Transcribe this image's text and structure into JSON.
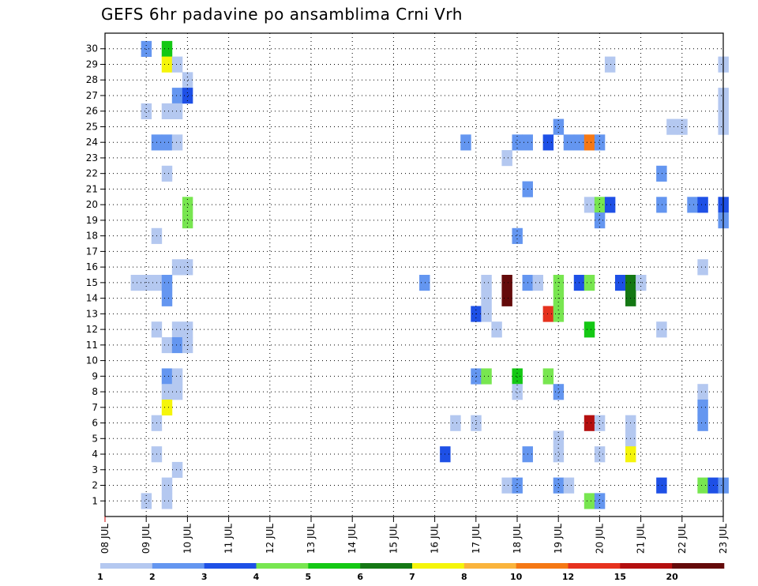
{
  "chart_data": {
    "type": "heatmap",
    "title": "GEFS 6hr padavine po ansamblima Crni Vrh",
    "x_ticks": [
      "08 JUL",
      "09 JUL",
      "10 JUL",
      "11 JUL",
      "12 JUL",
      "13 JUL",
      "14 JUL",
      "15 JUL",
      "16 JUL",
      "17 JUL",
      "18 JUL",
      "19 JUL",
      "20 JUL",
      "21 JUL",
      "22 JUL",
      "23 JUL"
    ],
    "y_ticks": [
      1,
      2,
      3,
      4,
      5,
      6,
      7,
      8,
      9,
      10,
      11,
      12,
      13,
      14,
      15,
      16,
      17,
      18,
      19,
      20,
      21,
      22,
      23,
      24,
      25,
      26,
      27,
      28,
      29,
      30
    ],
    "grid": true,
    "legend_position": "bottom",
    "legend": {
      "colors": [
        "#b4c8f0",
        "#6496f0",
        "#1e50e6",
        "#78e650",
        "#14c814",
        "#147814",
        "#f5f50a",
        "#fab43c",
        "#f57814",
        "#e6321e",
        "#b40f0f",
        "#640a0a"
      ],
      "labels": [
        "1",
        "2",
        "3",
        "4",
        "5",
        "6",
        "7",
        "8",
        "10",
        "12",
        "15",
        "20"
      ]
    },
    "cells": [
      {
        "x": "09 JUL 00",
        "member": 30,
        "mm": 2
      },
      {
        "x": "09 JUL 12",
        "member": 30,
        "mm": 5
      },
      {
        "x": "09 JUL 12",
        "member": 29,
        "mm": 7
      },
      {
        "x": "09 JUL 18",
        "member": 29,
        "mm": 1
      },
      {
        "x": "20 JUL 06",
        "member": 29,
        "mm": 1
      },
      {
        "x": "23 JUL 00",
        "member": 29,
        "mm": 1
      },
      {
        "x": "10 JUL 00",
        "member": 28,
        "mm": 1
      },
      {
        "x": "09 JUL 18",
        "member": 27,
        "mm": 2
      },
      {
        "x": "10 JUL 00",
        "member": 27,
        "mm": 3
      },
      {
        "x": "23 JUL 00",
        "member": 27,
        "mm": 1
      },
      {
        "x": "09 JUL 00",
        "member": 26,
        "mm": 1
      },
      {
        "x": "09 JUL 12",
        "member": 26,
        "mm": 1
      },
      {
        "x": "09 JUL 18",
        "member": 26,
        "mm": 1
      },
      {
        "x": "23 JUL 00",
        "member": 26,
        "mm": 1
      },
      {
        "x": "19 JUL 00",
        "member": 25,
        "mm": 2
      },
      {
        "x": "21 JUL 18",
        "member": 25,
        "mm": 1
      },
      {
        "x": "22 JUL 00",
        "member": 25,
        "mm": 1
      },
      {
        "x": "23 JUL 00",
        "member": 25,
        "mm": 1
      },
      {
        "x": "09 JUL 06",
        "member": 24,
        "mm": 2
      },
      {
        "x": "09 JUL 12",
        "member": 24,
        "mm": 2
      },
      {
        "x": "09 JUL 18",
        "member": 24,
        "mm": 1
      },
      {
        "x": "16 JUL 18",
        "member": 24,
        "mm": 2
      },
      {
        "x": "18 JUL 00",
        "member": 24,
        "mm": 2
      },
      {
        "x": "18 JUL 06",
        "member": 24,
        "mm": 2
      },
      {
        "x": "18 JUL 18",
        "member": 24,
        "mm": 3
      },
      {
        "x": "19 JUL 06",
        "member": 24,
        "mm": 2
      },
      {
        "x": "19 JUL 12",
        "member": 24,
        "mm": 2
      },
      {
        "x": "19 JUL 18",
        "member": 24,
        "mm": 10
      },
      {
        "x": "20 JUL 00",
        "member": 24,
        "mm": 2
      },
      {
        "x": "17 JUL 18",
        "member": 23,
        "mm": 1
      },
      {
        "x": "09 JUL 12",
        "member": 22,
        "mm": 1
      },
      {
        "x": "21 JUL 12",
        "member": 22,
        "mm": 2
      },
      {
        "x": "18 JUL 06",
        "member": 21,
        "mm": 2
      },
      {
        "x": "10 JUL 00",
        "member": 20,
        "mm": 4
      },
      {
        "x": "19 JUL 18",
        "member": 20,
        "mm": 1
      },
      {
        "x": "20 JUL 00",
        "member": 20,
        "mm": 4
      },
      {
        "x": "20 JUL 06",
        "member": 20,
        "mm": 3
      },
      {
        "x": "21 JUL 12",
        "member": 20,
        "mm": 2
      },
      {
        "x": "22 JUL 06",
        "member": 20,
        "mm": 2
      },
      {
        "x": "22 JUL 12",
        "member": 20,
        "mm": 3
      },
      {
        "x": "23 JUL 00",
        "member": 20,
        "mm": 3
      },
      {
        "x": "10 JUL 00",
        "member": 19,
        "mm": 4
      },
      {
        "x": "20 JUL 00",
        "member": 19,
        "mm": 2
      },
      {
        "x": "23 JUL 00",
        "member": 19,
        "mm": 2
      },
      {
        "x": "09 JUL 06",
        "member": 18,
        "mm": 1
      },
      {
        "x": "18 JUL 00",
        "member": 18,
        "mm": 2
      },
      {
        "x": "09 JUL 18",
        "member": 16,
        "mm": 1
      },
      {
        "x": "10 JUL 00",
        "member": 16,
        "mm": 1
      },
      {
        "x": "22 JUL 12",
        "member": 16,
        "mm": 1
      },
      {
        "x": "08 JUL 18",
        "member": 15,
        "mm": 1
      },
      {
        "x": "09 JUL 00",
        "member": 15,
        "mm": 1
      },
      {
        "x": "09 JUL 06",
        "member": 15,
        "mm": 1
      },
      {
        "x": "09 JUL 12",
        "member": 15,
        "mm": 2
      },
      {
        "x": "15 JUL 18",
        "member": 15,
        "mm": 2
      },
      {
        "x": "17 JUL 06",
        "member": 15,
        "mm": 1
      },
      {
        "x": "17 JUL 18",
        "member": 15,
        "mm": 20
      },
      {
        "x": "18 JUL 06",
        "member": 15,
        "mm": 2
      },
      {
        "x": "18 JUL 12",
        "member": 15,
        "mm": 1
      },
      {
        "x": "19 JUL 00",
        "member": 15,
        "mm": 4
      },
      {
        "x": "19 JUL 12",
        "member": 15,
        "mm": 3
      },
      {
        "x": "19 JUL 18",
        "member": 15,
        "mm": 4
      },
      {
        "x": "20 JUL 12",
        "member": 15,
        "mm": 3
      },
      {
        "x": "20 JUL 18",
        "member": 15,
        "mm": 6
      },
      {
        "x": "21 JUL 00",
        "member": 15,
        "mm": 1
      },
      {
        "x": "09 JUL 12",
        "member": 14,
        "mm": 2
      },
      {
        "x": "17 JUL 06",
        "member": 14,
        "mm": 1
      },
      {
        "x": "17 JUL 18",
        "member": 14,
        "mm": 20
      },
      {
        "x": "19 JUL 00",
        "member": 14,
        "mm": 4
      },
      {
        "x": "20 JUL 18",
        "member": 14,
        "mm": 6
      },
      {
        "x": "17 JUL 00",
        "member": 13,
        "mm": 3
      },
      {
        "x": "17 JUL 06",
        "member": 13,
        "mm": 1
      },
      {
        "x": "18 JUL 18",
        "member": 13,
        "mm": 12
      },
      {
        "x": "19 JUL 00",
        "member": 13,
        "mm": 4
      },
      {
        "x": "09 JUL 06",
        "member": 12,
        "mm": 1
      },
      {
        "x": "09 JUL 18",
        "member": 12,
        "mm": 1
      },
      {
        "x": "10 JUL 00",
        "member": 12,
        "mm": 1
      },
      {
        "x": "17 JUL 12",
        "member": 12,
        "mm": 1
      },
      {
        "x": "19 JUL 18",
        "member": 12,
        "mm": 5
      },
      {
        "x": "21 JUL 12",
        "member": 12,
        "mm": 1
      },
      {
        "x": "09 JUL 12",
        "member": 11,
        "mm": 1
      },
      {
        "x": "09 JUL 18",
        "member": 11,
        "mm": 2
      },
      {
        "x": "10 JUL 00",
        "member": 11,
        "mm": 1
      },
      {
        "x": "09 JUL 12",
        "member": 9,
        "mm": 2
      },
      {
        "x": "09 JUL 18",
        "member": 9,
        "mm": 1
      },
      {
        "x": "17 JUL 00",
        "member": 9,
        "mm": 2
      },
      {
        "x": "17 JUL 06",
        "member": 9,
        "mm": 4
      },
      {
        "x": "18 JUL 00",
        "member": 9,
        "mm": 5
      },
      {
        "x": "18 JUL 18",
        "member": 9,
        "mm": 4
      },
      {
        "x": "09 JUL 12",
        "member": 8,
        "mm": 1
      },
      {
        "x": "09 JUL 18",
        "member": 8,
        "mm": 1
      },
      {
        "x": "18 JUL 00",
        "member": 8,
        "mm": 1
      },
      {
        "x": "19 JUL 00",
        "member": 8,
        "mm": 2
      },
      {
        "x": "22 JUL 12",
        "member": 8,
        "mm": 1
      },
      {
        "x": "09 JUL 12",
        "member": 7,
        "mm": 7
      },
      {
        "x": "22 JUL 12",
        "member": 7,
        "mm": 2
      },
      {
        "x": "09 JUL 06",
        "member": 6,
        "mm": 1
      },
      {
        "x": "16 JUL 12",
        "member": 6,
        "mm": 1
      },
      {
        "x": "17 JUL 00",
        "member": 6,
        "mm": 1
      },
      {
        "x": "19 JUL 18",
        "member": 6,
        "mm": 15
      },
      {
        "x": "20 JUL 00",
        "member": 6,
        "mm": 1
      },
      {
        "x": "20 JUL 18",
        "member": 6,
        "mm": 1
      },
      {
        "x": "22 JUL 12",
        "member": 6,
        "mm": 2
      },
      {
        "x": "19 JUL 00",
        "member": 5,
        "mm": 1
      },
      {
        "x": "20 JUL 18",
        "member": 5,
        "mm": 1
      },
      {
        "x": "09 JUL 06",
        "member": 4,
        "mm": 1
      },
      {
        "x": "16 JUL 06",
        "member": 4,
        "mm": 3
      },
      {
        "x": "18 JUL 06",
        "member": 4,
        "mm": 2
      },
      {
        "x": "19 JUL 00",
        "member": 4,
        "mm": 1
      },
      {
        "x": "20 JUL 00",
        "member": 4,
        "mm": 1
      },
      {
        "x": "20 JUL 18",
        "member": 4,
        "mm": 7
      },
      {
        "x": "09 JUL 18",
        "member": 3,
        "mm": 1
      },
      {
        "x": "09 JUL 12",
        "member": 2,
        "mm": 1
      },
      {
        "x": "17 JUL 18",
        "member": 2,
        "mm": 1
      },
      {
        "x": "18 JUL 00",
        "member": 2,
        "mm": 2
      },
      {
        "x": "19 JUL 00",
        "member": 2,
        "mm": 2
      },
      {
        "x": "19 JUL 06",
        "member": 2,
        "mm": 1
      },
      {
        "x": "21 JUL 12",
        "member": 2,
        "mm": 3
      },
      {
        "x": "22 JUL 12",
        "member": 2,
        "mm": 4
      },
      {
        "x": "22 JUL 18",
        "member": 2,
        "mm": 3
      },
      {
        "x": "23 JUL 00",
        "member": 2,
        "mm": 2
      },
      {
        "x": "09 JUL 00",
        "member": 1,
        "mm": 1
      },
      {
        "x": "09 JUL 12",
        "member": 1,
        "mm": 1
      },
      {
        "x": "19 JUL 18",
        "member": 1,
        "mm": 4
      },
      {
        "x": "20 JUL 00",
        "member": 1,
        "mm": 2
      }
    ]
  }
}
